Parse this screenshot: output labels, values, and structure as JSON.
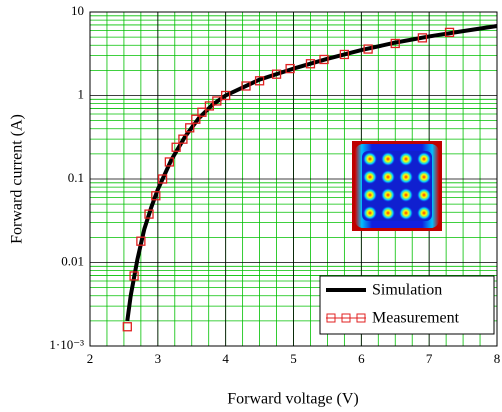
{
  "chart_data": {
    "type": "line",
    "x_label": "Forward voltage (V)",
    "y_label": "Forward current (A)",
    "xlim": [
      2,
      8
    ],
    "xticks": [
      2,
      3,
      4,
      5,
      6,
      7,
      8
    ],
    "ylim": [
      0.001,
      10
    ],
    "yticks": [
      10,
      1,
      0.1,
      0.01,
      {
        "value": 0.001,
        "label": "1·10⁻³"
      }
    ],
    "log_y": true,
    "grid": true,
    "legend": "lower right",
    "series": [
      {
        "name": "Simulation",
        "color": "#000000",
        "style": "line",
        "x": [
          2.55,
          2.6,
          2.7,
          2.8,
          2.9,
          3.0,
          3.2,
          3.4,
          3.6,
          3.8,
          4.0,
          4.5,
          5.0,
          5.5,
          6.0,
          6.5,
          7.0,
          7.5,
          8.0
        ],
        "values": [
          0.002,
          0.004,
          0.011,
          0.025,
          0.045,
          0.075,
          0.17,
          0.32,
          0.53,
          0.77,
          1.0,
          1.55,
          2.1,
          2.75,
          3.5,
          4.3,
          5.1,
          5.9,
          6.8
        ]
      },
      {
        "name": "Measurement",
        "color": "#e02020",
        "style": "markers",
        "x": [
          2.55,
          2.65,
          2.75,
          2.87,
          2.97,
          3.07,
          3.17,
          3.27,
          3.37,
          3.47,
          3.56,
          3.65,
          3.76,
          3.87,
          4.0,
          4.3,
          4.5,
          4.75,
          4.95,
          5.25,
          5.45,
          5.75,
          6.1,
          6.5,
          6.9,
          7.3
        ],
        "values": [
          0.0017,
          0.0069,
          0.018,
          0.038,
          0.063,
          0.1,
          0.16,
          0.24,
          0.3,
          0.41,
          0.52,
          0.63,
          0.75,
          0.86,
          1.0,
          1.3,
          1.5,
          1.8,
          2.1,
          2.4,
          2.7,
          3.1,
          3.6,
          4.2,
          4.9,
          5.7
        ]
      }
    ]
  }
}
